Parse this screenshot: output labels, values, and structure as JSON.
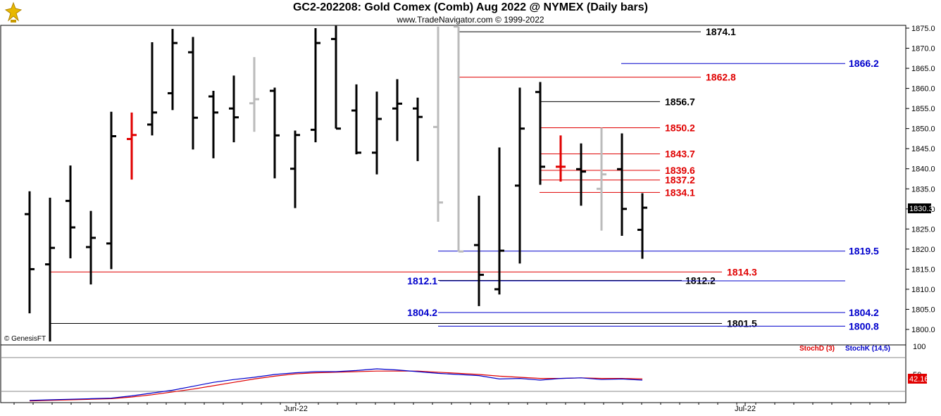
{
  "header": {
    "title": "GC2-202208:  Gold Comex (Comb) Aug 2022 @ NYMEX  (Daily bars)",
    "subtitle": "www.TradeNavigator.com © 1999-2022"
  },
  "watermark": "© GenesisFT",
  "colors": {
    "black": "#000000",
    "red": "#e00000",
    "blue": "#0000cc",
    "gray": "#bbbbbb",
    "green": "#00cc00"
  },
  "chart_data": {
    "type": "ohlc",
    "price_axis": {
      "min": 1798,
      "max": 1876,
      "ticks": [
        "1875.0",
        "1870.0",
        "1865.0",
        "1860.0",
        "1855.0",
        "1850.0",
        "1845.0",
        "1840.0",
        "1835.0",
        "1830.0",
        "1825.0",
        "1820.0",
        "1815.0",
        "1810.0",
        "1805.0",
        "1800.0"
      ],
      "last_price": "1830.3"
    },
    "date_labels": [
      "Jun-22",
      "Jul-22"
    ],
    "bars": [
      {
        "h": 1834.4,
        "l": 1804.0,
        "o": 1828.7,
        "c": 1815.0,
        "color": "black"
      },
      {
        "h": 1832.8,
        "l": 1797.0,
        "o": 1816.2,
        "c": 1820.3,
        "color": "black"
      },
      {
        "h": 1840.8,
        "l": 1817.7,
        "o": 1832.0,
        "c": 1825.4,
        "color": "black"
      },
      {
        "h": 1829.5,
        "l": 1811.2,
        "o": 1820.5,
        "c": 1822.8,
        "color": "black"
      },
      {
        "h": 1854.2,
        "l": 1815.0,
        "o": 1821.4,
        "c": 1848.1,
        "color": "black"
      },
      {
        "h": 1854.0,
        "l": 1837.3,
        "o": 1847.4,
        "c": 1848.4,
        "color": "red"
      },
      {
        "h": 1871.5,
        "l": 1848.3,
        "o": 1851.0,
        "c": 1854.0,
        "color": "black"
      },
      {
        "h": 1874.8,
        "l": 1854.6,
        "o": 1858.8,
        "c": 1871.3,
        "color": "black"
      },
      {
        "h": 1872.8,
        "l": 1844.8,
        "o": 1869.0,
        "c": 1852.7,
        "color": "black"
      },
      {
        "h": 1859.4,
        "l": 1842.6,
        "o": 1858.0,
        "c": 1854.0,
        "color": "black"
      },
      {
        "h": 1863.2,
        "l": 1846.6,
        "o": 1855.0,
        "c": 1852.8,
        "color": "black"
      },
      {
        "h": 1867.8,
        "l": 1849.2,
        "o": 1856.3,
        "c": 1857.3,
        "color": "gray"
      },
      {
        "h": 1860.2,
        "l": 1837.6,
        "o": 1859.4,
        "c": 1848.3,
        "color": "black"
      },
      {
        "h": 1849.5,
        "l": 1830.2,
        "o": 1840.0,
        "c": 1848.4,
        "color": "black"
      },
      {
        "h": 1875.0,
        "l": 1846.6,
        "o": 1849.7,
        "c": 1871.3,
        "color": "black"
      },
      {
        "h": 1875.6,
        "l": 1850.0,
        "o": 1872.3,
        "c": 1850.0,
        "color": "black"
      },
      {
        "h": 1861.0,
        "l": 1843.6,
        "o": 1854.5,
        "c": 1844.0,
        "color": "black"
      },
      {
        "h": 1859.2,
        "l": 1838.6,
        "o": 1844.0,
        "c": 1852.4,
        "color": "black"
      },
      {
        "h": 1862.3,
        "l": 1846.9,
        "o": 1855.0,
        "c": 1856.2,
        "color": "black"
      },
      {
        "h": 1857.7,
        "l": 1841.9,
        "o": 1855.0,
        "c": 1852.9,
        "color": "black"
      },
      {
        "h": 1875.4,
        "l": 1826.8,
        "o": 1850.4,
        "c": 1831.6,
        "color": "gray"
      },
      {
        "h": 1875.4,
        "l": 1819.4,
        "o": 1875.4,
        "c": 1819.4,
        "color": "gray"
      },
      {
        "h": 1833.3,
        "l": 1805.8,
        "o": 1821.0,
        "c": 1813.6,
        "color": "black"
      },
      {
        "h": 1845.3,
        "l": 1808.7,
        "o": 1810.0,
        "c": 1819.6,
        "color": "black"
      },
      {
        "h": 1860.2,
        "l": 1816.4,
        "o": 1835.8,
        "c": 1850.0,
        "color": "black"
      },
      {
        "h": 1861.6,
        "l": 1836.0,
        "o": 1859.1,
        "c": 1840.5,
        "color": "black"
      },
      {
        "h": 1848.3,
        "l": 1836.8,
        "o": 1840.5,
        "c": 1840.5,
        "color": "red"
      },
      {
        "h": 1846.3,
        "l": 1830.8,
        "o": 1839.9,
        "c": 1839.3,
        "color": "black"
      },
      {
        "h": 1850.2,
        "l": 1824.6,
        "o": 1835.0,
        "c": 1838.6,
        "color": "gray"
      },
      {
        "h": 1848.8,
        "l": 1823.3,
        "o": 1839.9,
        "c": 1830.0,
        "color": "black"
      },
      {
        "h": 1833.9,
        "l": 1817.6,
        "o": 1824.8,
        "c": 1830.3,
        "color": "black"
      }
    ],
    "levels": [
      {
        "label": "1874.1",
        "value": 1874.1,
        "color": "black",
        "side": "right"
      },
      {
        "label": "1866.2",
        "value": 1866.2,
        "color": "blue",
        "side": "right"
      },
      {
        "label": "1862.8",
        "value": 1862.8,
        "color": "red",
        "side": "right"
      },
      {
        "label": "1856.7",
        "value": 1856.7,
        "color": "black",
        "side": "right"
      },
      {
        "label": "1850.2",
        "value": 1850.2,
        "color": "red",
        "side": "right"
      },
      {
        "label": "1843.7",
        "value": 1843.7,
        "color": "red",
        "side": "right"
      },
      {
        "label": "1839.6",
        "value": 1839.6,
        "color": "red",
        "side": "right"
      },
      {
        "label": "1837.2",
        "value": 1837.2,
        "color": "red",
        "side": "right"
      },
      {
        "label": "1834.1",
        "value": 1834.1,
        "color": "red",
        "side": "right"
      },
      {
        "label": "1819.5",
        "value": 1819.5,
        "color": "blue",
        "side": "right"
      },
      {
        "label": "1814.3",
        "value": 1814.3,
        "color": "red",
        "side": "right"
      },
      {
        "label": "1812.2",
        "value": 1812.2,
        "color": "black",
        "side": "right"
      },
      {
        "label": "1812.1",
        "value": 1812.1,
        "color": "blue",
        "side": "left"
      },
      {
        "label": "1804.2",
        "value": 1804.2,
        "color": "blue",
        "side": "left"
      },
      {
        "label": "1804.2",
        "value": 1804.2,
        "color": "blue",
        "side": "right"
      },
      {
        "label": "1801.5",
        "value": 1801.5,
        "color": "black",
        "side": "right"
      },
      {
        "label": "1800.8",
        "value": 1800.8,
        "color": "blue",
        "side": "right"
      }
    ],
    "stochastic": {
      "legend": [
        {
          "name": "StochD (3)",
          "color": "red"
        },
        {
          "name": "StochK (14,5)",
          "color": "blue"
        }
      ],
      "ticks": [
        "100",
        "50"
      ],
      "last_value": "42.16",
      "stoch_k": [
        4,
        5,
        6,
        7,
        8,
        12,
        17,
        22,
        29,
        36,
        41,
        45,
        50,
        53,
        55,
        55,
        57,
        60,
        58,
        55,
        52,
        50,
        48,
        42,
        43,
        40,
        43,
        44,
        41,
        42,
        40
      ],
      "stoch_d": [
        3,
        4,
        5,
        6,
        7,
        10,
        14,
        19,
        24,
        30,
        36,
        42,
        47,
        51,
        53,
        54,
        55,
        56,
        56,
        56,
        54,
        52,
        50,
        47,
        45,
        43,
        43,
        44,
        43,
        43,
        42
      ]
    }
  }
}
